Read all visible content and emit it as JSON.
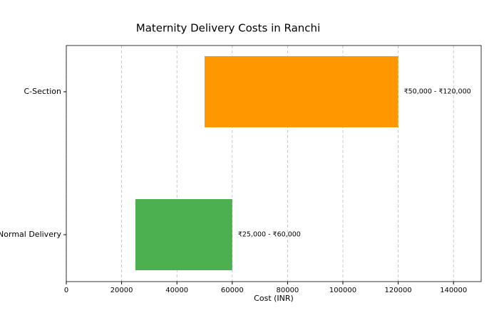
{
  "chart_data": {
    "type": "range-bar",
    "title": "Maternity Delivery Costs in Ranchi",
    "x_label": "Cost (INR)",
    "categories": [
      "Normal Delivery",
      "C-Section"
    ],
    "low": [
      25000,
      50000
    ],
    "high": [
      60000,
      120000
    ],
    "value_labels": [
      "₹25,000 - ₹60,000",
      "₹50,000 - ₹120,000"
    ],
    "colors": [
      "#4caf50",
      "#ff9800"
    ],
    "xlim": [
      0,
      150000
    ],
    "xticks": [
      0,
      20000,
      40000,
      60000,
      80000,
      100000,
      120000,
      140000
    ],
    "grid": true
  }
}
